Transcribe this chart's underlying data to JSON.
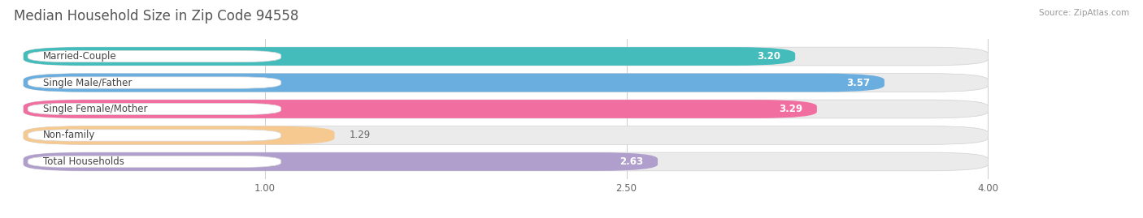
{
  "title": "Median Household Size in Zip Code 94558",
  "source": "Source: ZipAtlas.com",
  "categories": [
    "Married-Couple",
    "Single Male/Father",
    "Single Female/Mother",
    "Non-family",
    "Total Households"
  ],
  "values": [
    3.2,
    3.57,
    3.29,
    1.29,
    2.63
  ],
  "bar_colors": [
    "#45BCBC",
    "#6AAEE0",
    "#F06EA0",
    "#F5C990",
    "#B09FCC"
  ],
  "bar_bg_colors": [
    "#EBEBEB",
    "#EBEBEB",
    "#EBEBEB",
    "#EBEBEB",
    "#EBEBEB"
  ],
  "xlim_min": 0.0,
  "xlim_max": 4.0,
  "xticks": [
    1.0,
    2.5,
    4.0
  ],
  "title_fontsize": 12,
  "label_fontsize": 8.5,
  "value_fontsize": 8.5,
  "axis_fontsize": 8.5,
  "background_color": "#FFFFFF"
}
